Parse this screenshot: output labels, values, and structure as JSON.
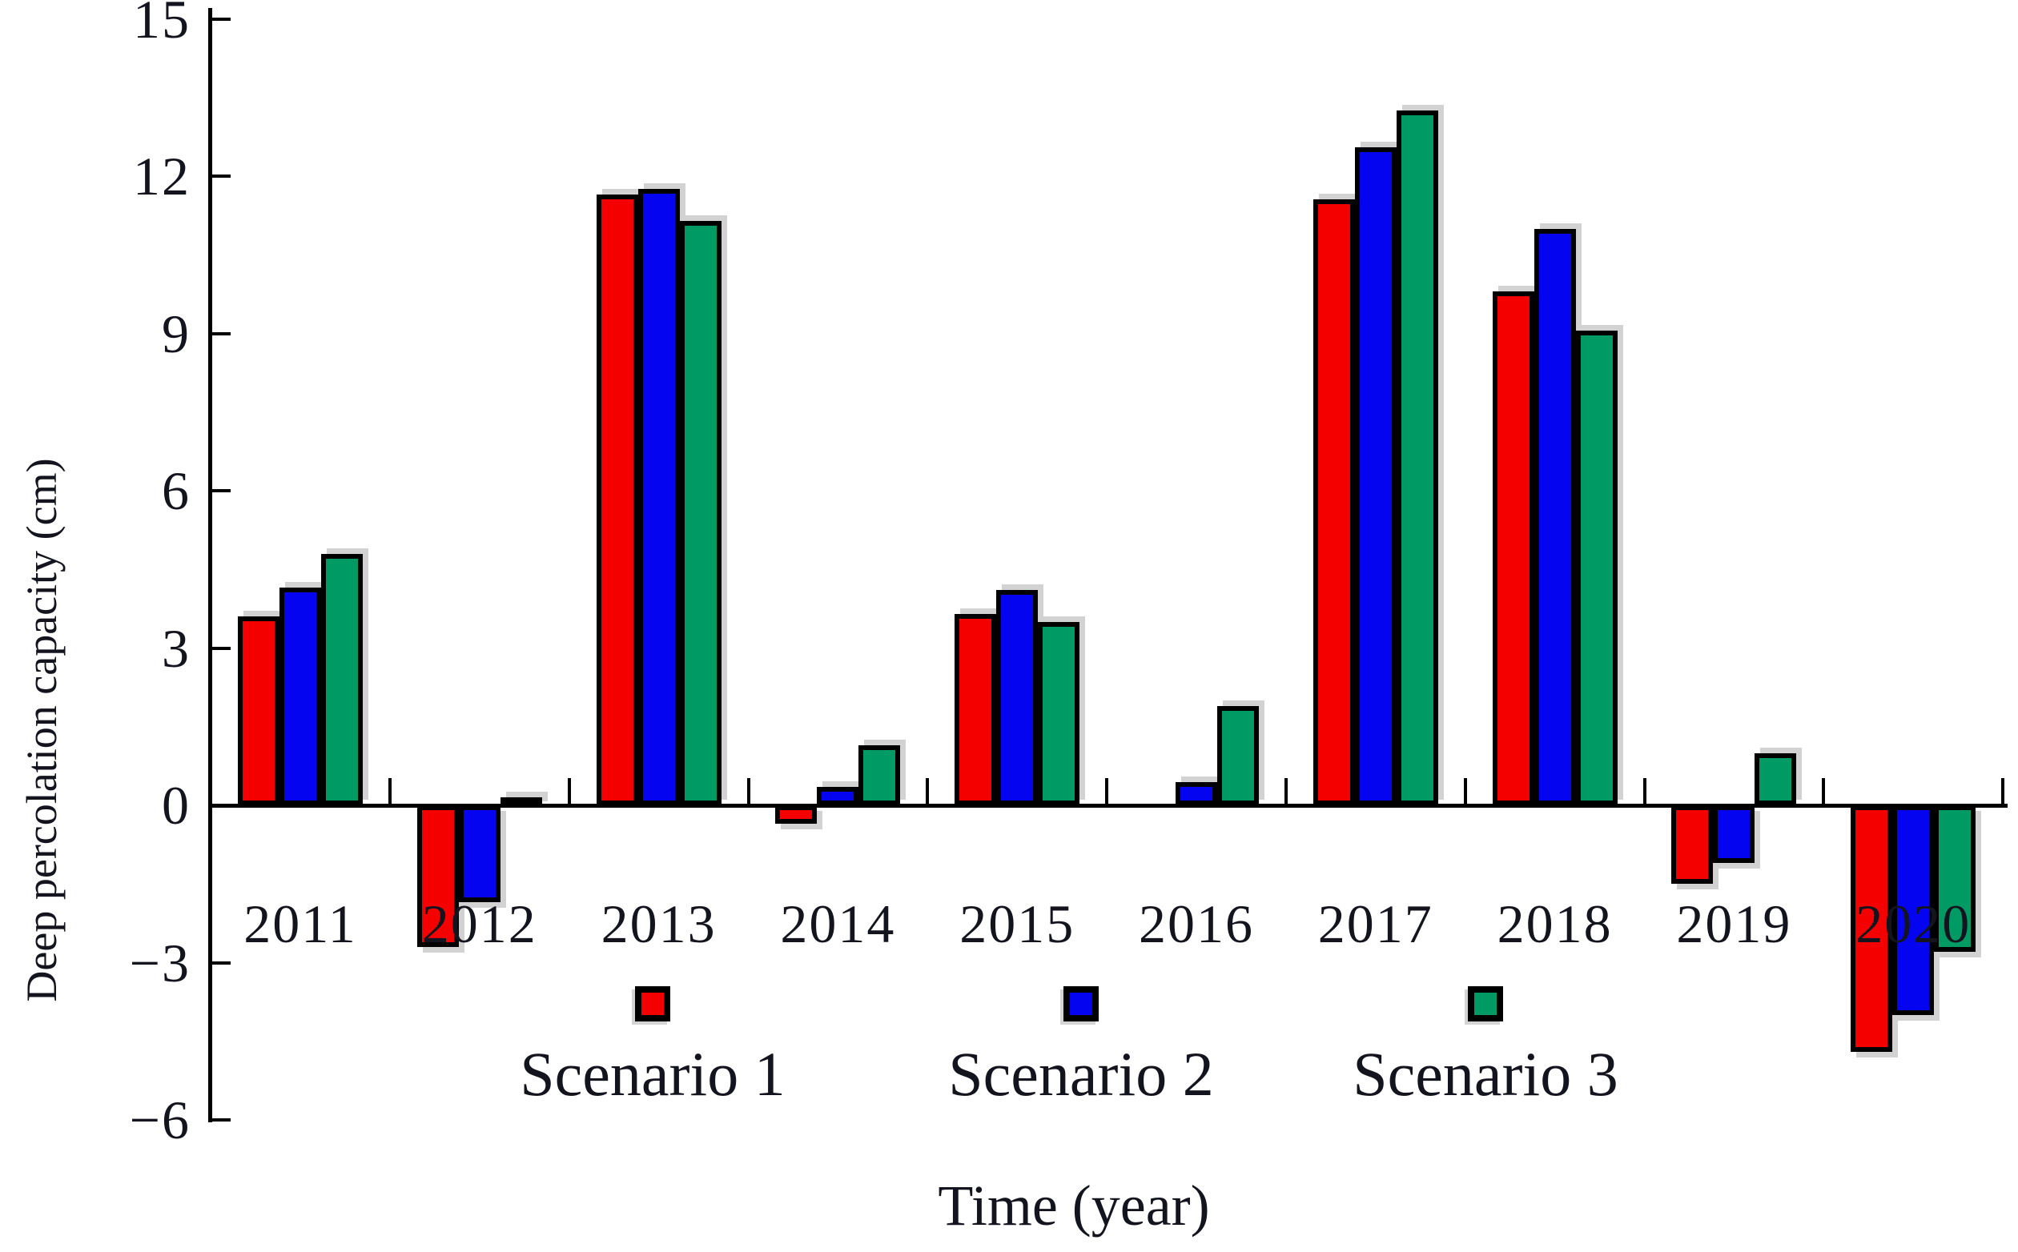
{
  "chart_data": {
    "type": "bar",
    "categories": [
      "2011",
      "2012",
      "2013",
      "2014",
      "2015",
      "2016",
      "2017",
      "2018",
      "2019",
      "2020"
    ],
    "series": [
      {
        "name": "Scenario 1",
        "color": "#f40000",
        "values": [
          3.6,
          -2.7,
          11.65,
          -0.35,
          3.65,
          0,
          11.55,
          9.8,
          -1.5,
          -4.7
        ]
      },
      {
        "name": "Scenario 2",
        "color": "#0404f0",
        "values": [
          4.15,
          -1.85,
          11.75,
          0.35,
          4.1,
          0.45,
          12.55,
          11.0,
          -1.1,
          -4.0
        ]
      },
      {
        "name": "Scenario 3",
        "color": "#009a64",
        "values": [
          4.8,
          0.15,
          11.15,
          1.15,
          3.5,
          1.9,
          13.25,
          9.05,
          1.0,
          -2.8
        ]
      }
    ],
    "title": "",
    "xlabel": "Time (year)",
    "ylabel": "Deep percolation capacity (cm)",
    "ylim": [
      -6,
      15
    ],
    "ytick_step": 3,
    "ytick_labels": [
      "15",
      "12",
      "9",
      "6",
      "3",
      "0",
      "−3",
      "−6"
    ],
    "ytick_values": [
      15,
      12,
      9,
      6,
      3,
      0,
      -3,
      -6
    ],
    "grid": false,
    "legend_position": "bottom",
    "bar_edge_color": "#000000"
  },
  "y_axis": {
    "label": "Deep percolation capacity (cm)"
  },
  "x_axis": {
    "label": "Time (year)"
  },
  "legend": {
    "items": [
      {
        "label": "Scenario 1",
        "color": "#f40000"
      },
      {
        "label": "Scenario 2",
        "color": "#0404f0"
      },
      {
        "label": "Scenario 3",
        "color": "#009a64"
      }
    ]
  }
}
